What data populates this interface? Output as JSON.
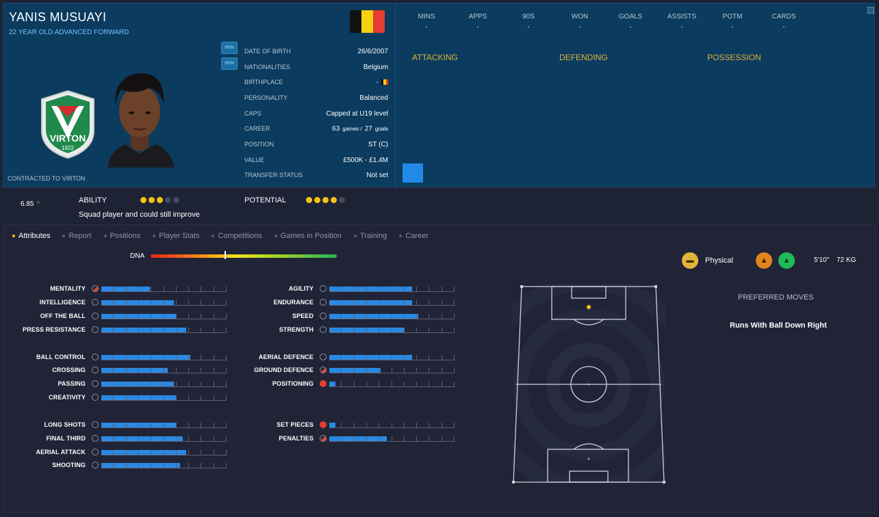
{
  "player": {
    "name": "YANIS MUSUAYI",
    "subtitle": "22 YEAR OLD  ADVANCED FORWARD",
    "contracted": "CONTRACTED TO VIRTON",
    "club_badge_text": "VIRTON",
    "club_badge_year": "1922",
    "hgn_badge_1": "HGN",
    "hgn_badge_2": "HGN"
  },
  "info": [
    {
      "label": "DATE OF BIRTH",
      "value": "26/6/2007"
    },
    {
      "label": "NATIONALITIES",
      "value": "Belgium"
    },
    {
      "label": "BIRTHPLACE",
      "value": "-"
    },
    {
      "label": "PERSONALITY",
      "value": "Balanced"
    },
    {
      "label": "CAPS",
      "value": "Capped at U19 level"
    },
    {
      "label": "CAREER",
      "games": "63",
      "games_unit": "games /",
      "goals": "27",
      "goals_unit": "goals"
    },
    {
      "label": "POSITION",
      "value": "ST (C)"
    },
    {
      "label": "VALUE",
      "value": "£500K - £1.4M"
    },
    {
      "label": "TRANSFER STATUS",
      "value": "Not set"
    }
  ],
  "stats": [
    {
      "label": "MINS",
      "value": "-"
    },
    {
      "label": "APPS",
      "value": "-"
    },
    {
      "label": "90S",
      "value": "-"
    },
    {
      "label": "WON",
      "value": "-"
    },
    {
      "label": "GOALS",
      "value": "-"
    },
    {
      "label": "ASSISTS",
      "value": "-"
    },
    {
      "label": "POTM",
      "value": "-"
    },
    {
      "label": "CARDS",
      "value": "-"
    }
  ],
  "sections": {
    "attacking": "ATTACKING",
    "defending": "DEFENDING",
    "possession": "POSSESSION"
  },
  "ability": {
    "rating": "6.85",
    "ability_label": "ABILITY",
    "ability_stars": 3,
    "potential_label": "POTENTIAL",
    "potential_stars": 4,
    "max_stars": 5,
    "description": "Squad player and could still improve"
  },
  "tabs": [
    {
      "label": "Attributes",
      "active": true
    },
    {
      "label": "Report",
      "active": false
    },
    {
      "label": "Positions",
      "active": false
    },
    {
      "label": "Player Stats",
      "active": false
    },
    {
      "label": "Competitions",
      "active": false
    },
    {
      "label": "Games in Position",
      "active": false
    },
    {
      "label": "Training",
      "active": false
    },
    {
      "label": "Career",
      "active": false
    }
  ],
  "dna": {
    "label": "DNA",
    "value": 0.4
  },
  "attributes_left": [
    {
      "label": "MENTALITY",
      "value": 0.39,
      "icon": "half"
    },
    {
      "label": "INTELLIGENCE",
      "value": 0.58,
      "icon": "neutral"
    },
    {
      "label": "OFF THE BALL",
      "value": 0.6,
      "icon": "neutral"
    },
    {
      "label": "PRESS RESISTANCE",
      "value": 0.68,
      "icon": "neutral"
    },
    {
      "label": "BALL CONTROL",
      "value": 0.71,
      "icon": "neutral"
    },
    {
      "label": "CROSSING",
      "value": 0.53,
      "icon": "neutral"
    },
    {
      "label": "PASSING",
      "value": 0.58,
      "icon": "neutral"
    },
    {
      "label": "CREATIVITY",
      "value": 0.6,
      "icon": "neutral"
    },
    {
      "label": "LONG SHOTS",
      "value": 0.6,
      "icon": "neutral"
    },
    {
      "label": "FINAL THIRD",
      "value": 0.65,
      "icon": "neutral"
    },
    {
      "label": "AERIAL ATTACK",
      "value": 0.68,
      "icon": "neutral"
    },
    {
      "label": "SHOOTING",
      "value": 0.63,
      "icon": "neutral"
    }
  ],
  "attributes_right": [
    {
      "label": "AGILITY",
      "value": 0.66,
      "icon": "neutral"
    },
    {
      "label": "ENDURANCE",
      "value": 0.66,
      "icon": "neutral"
    },
    {
      "label": "SPEED",
      "value": 0.71,
      "icon": "neutral"
    },
    {
      "label": "STRENGTH",
      "value": 0.6,
      "icon": "neutral"
    },
    {
      "label": "AERIAL DEFENCE",
      "value": 0.66,
      "icon": "neutral"
    },
    {
      "label": "GROUND DEFENCE",
      "value": 0.41,
      "icon": "half"
    },
    {
      "label": "POSITIONING",
      "value": 0.05,
      "icon": "red"
    },
    {
      "label": "SET PIECES",
      "value": 0.05,
      "icon": "red"
    },
    {
      "label": "PENALTIES",
      "value": 0.46,
      "icon": "half"
    }
  ],
  "physical": {
    "label": "Physical",
    "height": "5'10\"",
    "weight": "72 KG"
  },
  "preferred_moves": {
    "title": "PREFERRED MOVES",
    "move": "Runs With Ball Down Right"
  },
  "colors": {
    "accent": "#e2b43b",
    "bar": "#2a89e3",
    "panel": "#0b3b5e"
  }
}
